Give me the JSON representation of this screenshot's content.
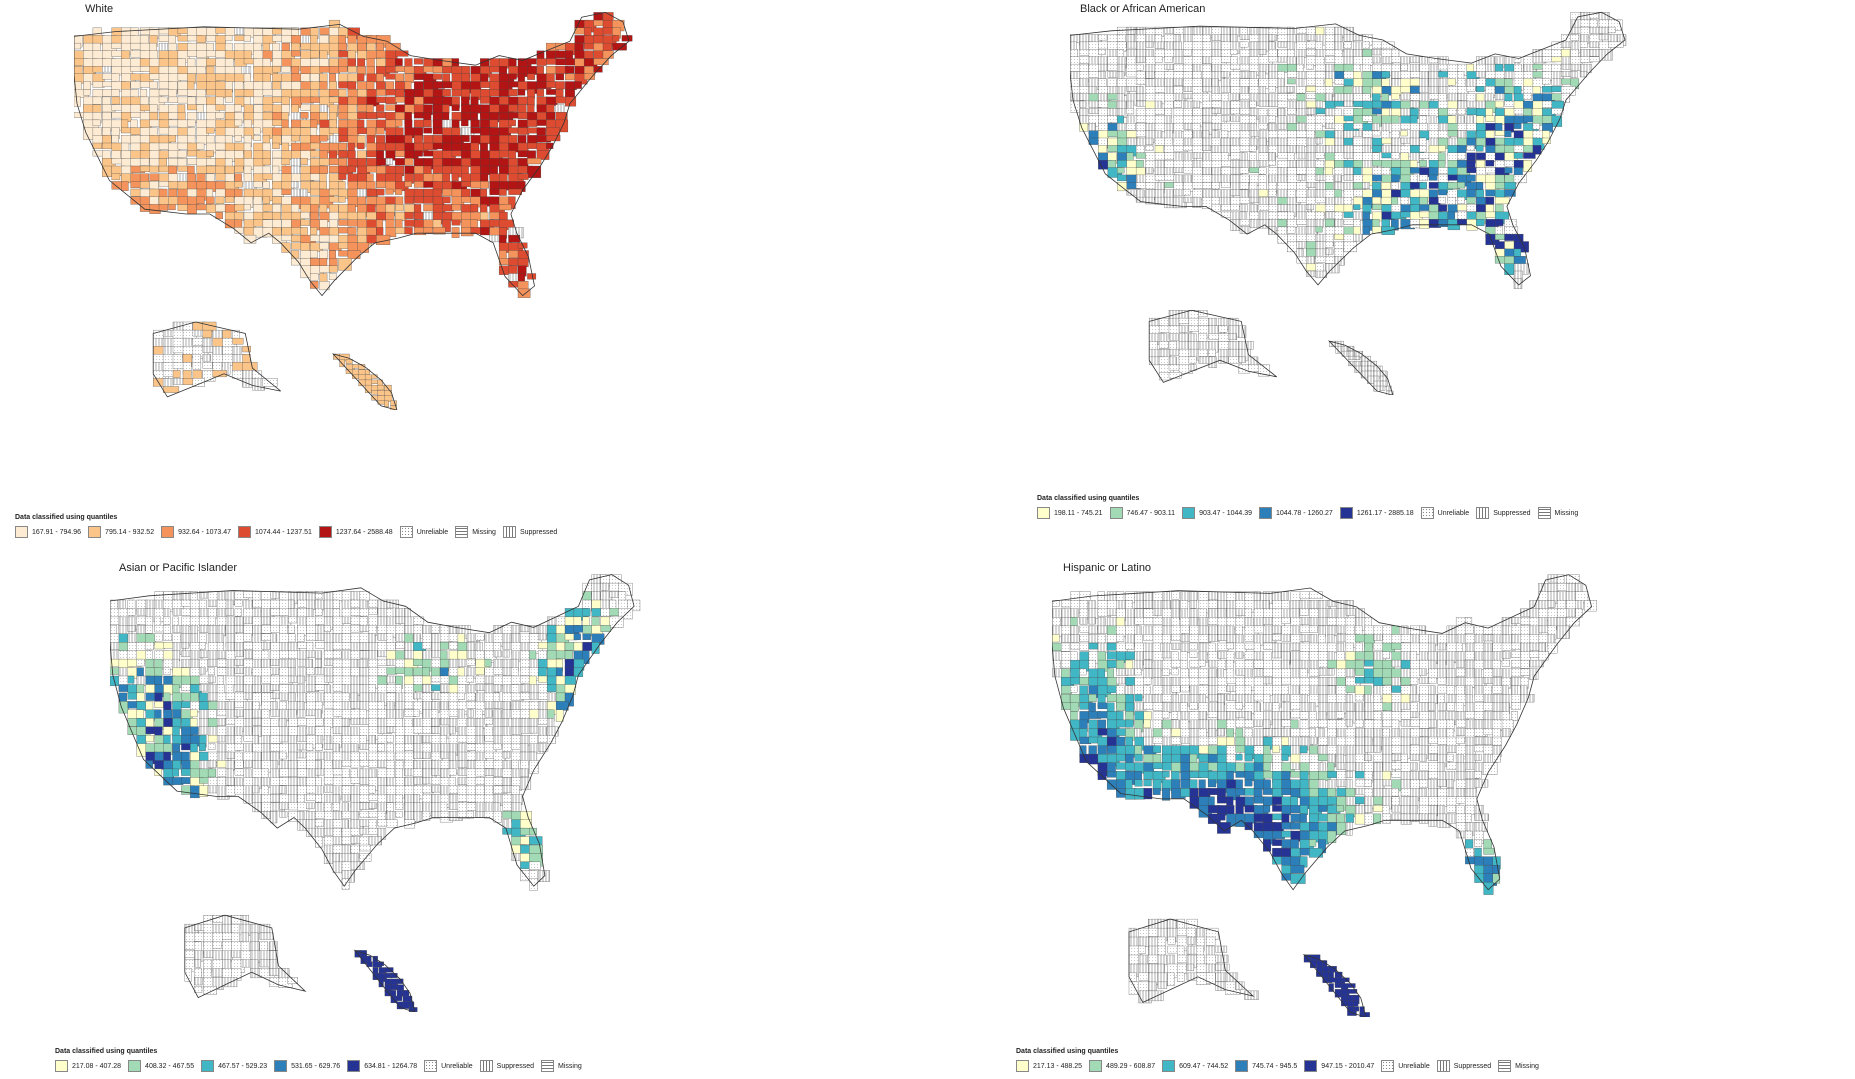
{
  "panels": [
    {
      "title": "White",
      "palette": [
        "#fdebd3",
        "#fbc58a",
        "#f4935c",
        "#dd4b30",
        "#b31414"
      ],
      "legend": {
        "heading": "Data classified using quantiles",
        "classes": [
          "167.91 - 794.96",
          "795.14 - 932.52",
          "932.64 - 1073.47",
          "1074.44 - 1237.51",
          "1237.64 - 2588.48"
        ],
        "special": [
          {
            "label": "Unreliable",
            "pattern": "unreliable"
          },
          {
            "label": "Missing",
            "pattern": "missing"
          },
          {
            "label": "Suppressed",
            "pattern": "suppressed"
          }
        ]
      }
    },
    {
      "title": "Black or African American",
      "palette": [
        "#ffffcc",
        "#a1dab4",
        "#41b6c4",
        "#2c7fb8",
        "#253494"
      ],
      "legend": {
        "heading": "Data classified using quantiles",
        "classes": [
          "198.11 - 745.21",
          "746.47 - 903.11",
          "903.47 - 1044.39",
          "1044.78 - 1260.27",
          "1261.17 - 2885.18"
        ],
        "special": [
          {
            "label": "Unreliable",
            "pattern": "unreliable"
          },
          {
            "label": "Suppressed",
            "pattern": "suppressed"
          },
          {
            "label": "Missing",
            "pattern": "missing"
          }
        ]
      }
    },
    {
      "title": "Asian or Pacific Islander",
      "palette": [
        "#ffffcc",
        "#a1dab4",
        "#41b6c4",
        "#2c7fb8",
        "#253494"
      ],
      "legend": {
        "heading": "Data classified using quantiles",
        "classes": [
          "217.08 - 407.28",
          "408.32 - 467.55",
          "467.57 - 529.23",
          "531.65 - 629.76",
          "634.81 - 1264.78"
        ],
        "special": [
          {
            "label": "Unreliable",
            "pattern": "unreliable"
          },
          {
            "label": "Suppressed",
            "pattern": "suppressed"
          },
          {
            "label": "Missing",
            "pattern": "missing"
          }
        ]
      }
    },
    {
      "title": "Hispanic or Latino",
      "palette": [
        "#ffffcc",
        "#a1dab4",
        "#41b6c4",
        "#2c7fb8",
        "#253494"
      ],
      "legend": {
        "heading": "Data classified using quantiles",
        "classes": [
          "217.13 - 488.25",
          "489.29 - 608.87",
          "609.47 - 744.52",
          "745.74 - 945.5",
          "947.15 - 2010.47"
        ],
        "special": [
          {
            "label": "Unreliable",
            "pattern": "unreliable"
          },
          {
            "label": "Suppressed",
            "pattern": "suppressed"
          },
          {
            "label": "Missing",
            "pattern": "missing"
          }
        ]
      }
    }
  ]
}
